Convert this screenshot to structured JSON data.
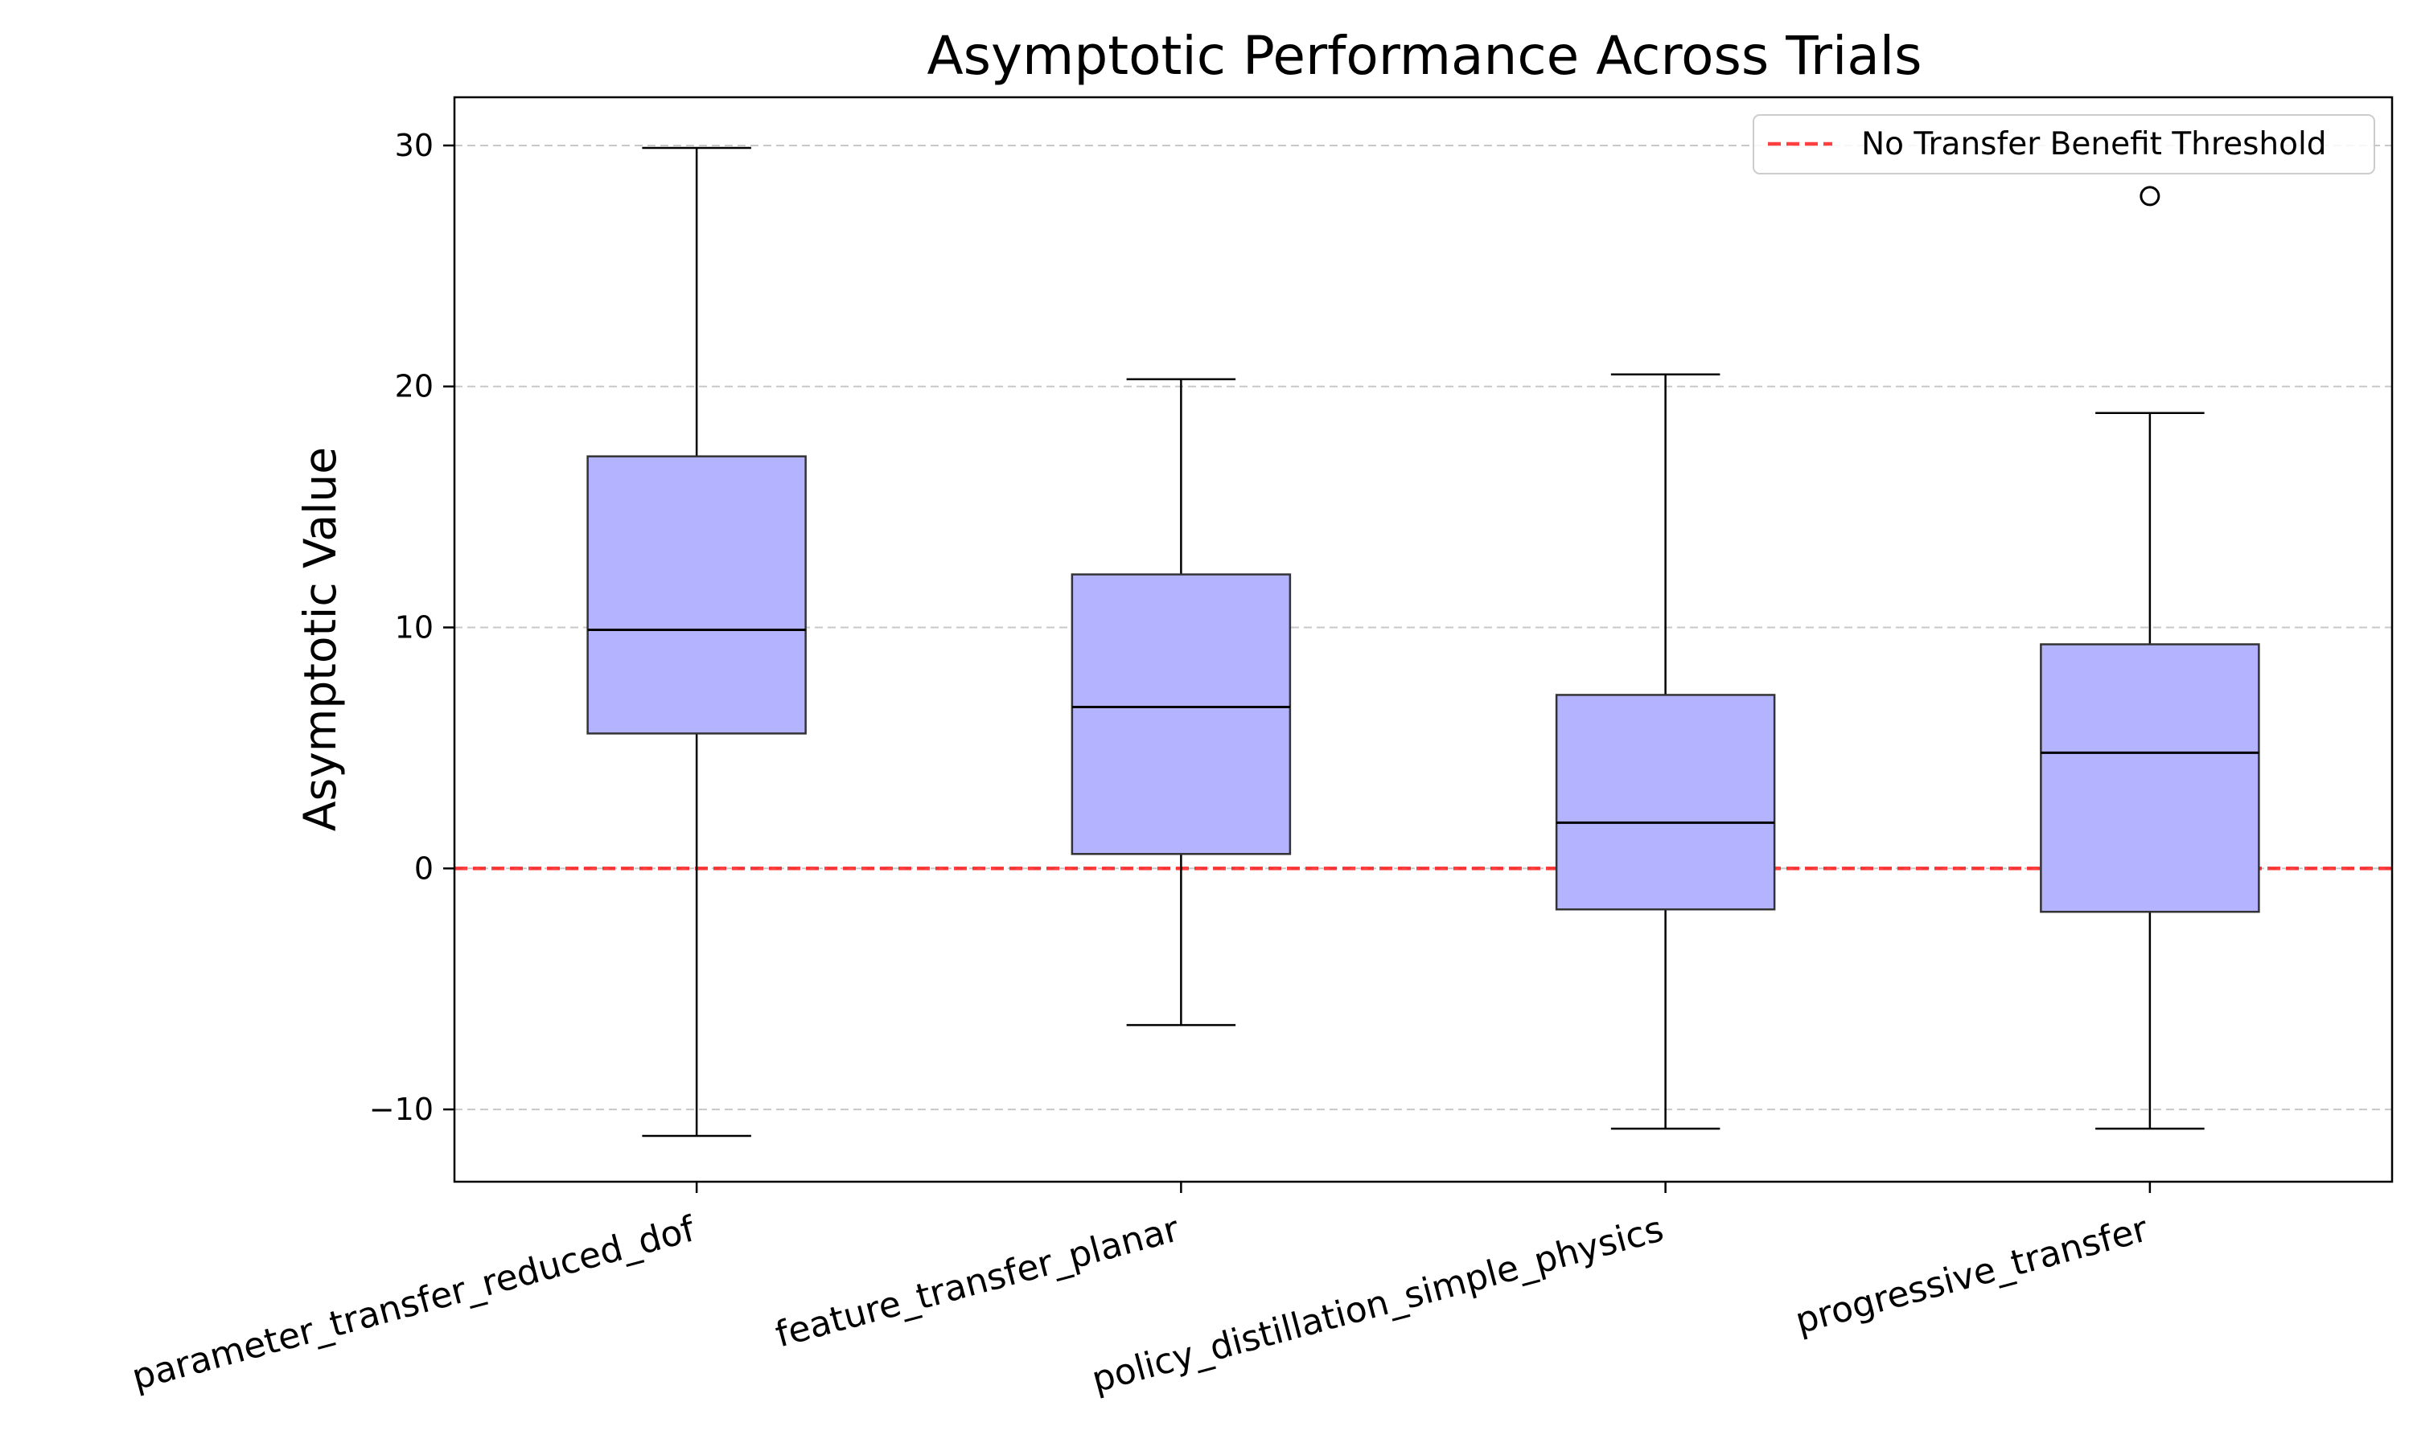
{
  "chart_data": {
    "type": "box",
    "title": "Asymptotic Performance Across Trials",
    "xlabel": "",
    "ylabel": "Asymptotic Value",
    "ylim": [
      -13,
      32
    ],
    "yticks": [
      -10,
      0,
      10,
      20,
      30
    ],
    "grid": "y-dashed",
    "legend_placement": "top-right",
    "categories": [
      "parameter_transfer_reduced_dof",
      "feature_transfer_planar",
      "policy_distillation_simple_physics",
      "progressive_transfer"
    ],
    "boxes": [
      {
        "whisker_low": -11.1,
        "q1": 5.6,
        "median": 9.9,
        "q3": 17.1,
        "whisker_high": 29.9,
        "outliers": []
      },
      {
        "whisker_low": -6.5,
        "q1": 0.6,
        "median": 6.7,
        "q3": 12.2,
        "whisker_high": 20.3,
        "outliers": []
      },
      {
        "whisker_low": -10.8,
        "q1": -1.7,
        "median": 1.9,
        "q3": 7.2,
        "whisker_high": 20.5,
        "outliers": []
      },
      {
        "whisker_low": -10.8,
        "q1": -1.8,
        "median": 4.8,
        "q3": 9.3,
        "whisker_high": 18.9,
        "outliers": [
          27.9
        ]
      }
    ],
    "reference_line": {
      "label": "No Transfer Benefit Threshold",
      "y": 0,
      "color": "#ff0000",
      "style": "dashed"
    },
    "colors": {
      "box_fill": "#b3b3ff",
      "box_edge": "#333333",
      "median": "#000000",
      "grid": "#c8c8c8"
    }
  }
}
